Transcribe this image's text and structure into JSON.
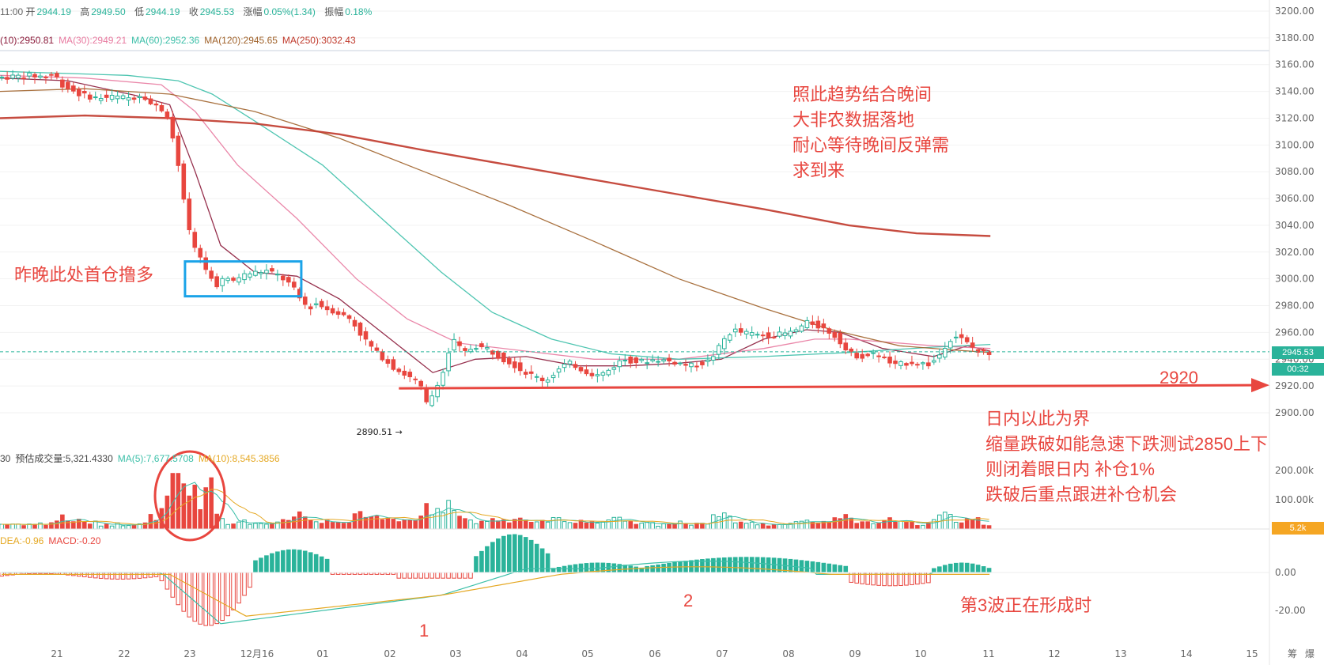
{
  "ohlc": {
    "time": "11:00",
    "open_label": "开",
    "open": "2944.19",
    "high_label": "高",
    "high": "2949.50",
    "low_label": "低",
    "low": "2944.19",
    "close_label": "收",
    "close": "2945.53",
    "change_label": "涨幅",
    "change": "0.05%(1.34)",
    "amp_label": "振幅",
    "amp": "0.18%"
  },
  "ma_legend": [
    {
      "text": "(10):2950.81",
      "color": "#8b1a3a"
    },
    {
      "text": "MA(30):2949.21",
      "color": "#e87aa0"
    },
    {
      "text": "MA(60):2952.36",
      "color": "#3bbfa8"
    },
    {
      "text": "MA(120):2945.65",
      "color": "#a0622a"
    },
    {
      "text": "MA(250):3032.43",
      "color": "#c0392b"
    }
  ],
  "volume_legend": [
    {
      "text": "30",
      "color": "#444"
    },
    {
      "text": "预估成交量:5,321.4330",
      "color": "#444"
    },
    {
      "text": "MA(5):7,677.5708",
      "color": "#3bbfa8"
    },
    {
      "text": "MA(10):8,545.3856",
      "color": "#e5a823"
    }
  ],
  "macd_legend": [
    {
      "text": "DEA:-0.96",
      "color": "#e5a823"
    },
    {
      "text": "MACD:-0.20",
      "color": "#e8463f"
    }
  ],
  "colors": {
    "up": "#2ab39a",
    "down": "#e8463f",
    "grid": "#f2f2f2",
    "axis_text": "#666",
    "annotation": "#e8463f",
    "box": "#1aa3e8",
    "current": "#2ab39a",
    "volume_badge": "#f5a623"
  },
  "annotations": {
    "box_label": "昨晚此处首仓撸多",
    "top_right": [
      "照此趋势结合晚间",
      "大非农数据落地",
      "耐心等待晚间反弹需",
      "求到来"
    ],
    "level": "2920",
    "bottom_right": [
      "日内以此为界",
      "缩量跌破如能急速下跌测试2850上下",
      "则闭着眼日内 补仓1%",
      "跌破后重点跟进补仓机会"
    ],
    "wave1": "1",
    "wave2": "2",
    "wave3": "第3波正在形成时",
    "low_marker": "2890.51"
  },
  "price_badge": "2945.53",
  "time_badge": "00:32",
  "volume_badge": "5.2k",
  "chart_data": {
    "type": "candlestick",
    "price_axis": {
      "ylim": [
        2890,
        3200
      ],
      "ticks": [
        3200,
        3180,
        3160,
        3140,
        3120,
        3100,
        3080,
        3060,
        3040,
        3020,
        3000,
        2980,
        2960,
        2940,
        2920,
        2900
      ],
      "tick_labels": [
        "3200.00",
        "3180.00",
        "3160.00",
        "3140.00",
        "3120.00",
        "3100.00",
        "3080.00",
        "3060.00",
        "3040.00",
        "3020.00",
        "3000.00",
        "2980.00",
        "2960.00",
        "2940.00",
        "2920.00",
        "2900.00"
      ]
    },
    "volume_axis": {
      "tick_labels": [
        "200.00k",
        "100.00k"
      ],
      "ticks": [
        200,
        100
      ]
    },
    "macd_axis": {
      "tick_labels": [
        "0.00",
        "-20.00"
      ],
      "ticks": [
        0,
        -20
      ]
    },
    "x_tick_labels": [
      "21",
      "22",
      "23",
      "12月16",
      "01",
      "02",
      "03",
      "04",
      "05",
      "06",
      "07",
      "08",
      "09",
      "10",
      "11",
      "12",
      "13",
      "14",
      "15"
    ],
    "x_right_labels": [
      "筹",
      "爆"
    ],
    "current_price": 2945.53,
    "low_price": 2890.51,
    "level_line": 2920,
    "box": {
      "price_high": 3013,
      "price_low": 2987
    },
    "price_path": [
      [
        0,
        3150
      ],
      [
        20,
        3151
      ],
      [
        40,
        3152
      ],
      [
        60,
        3151
      ],
      [
        70,
        3153
      ],
      [
        80,
        3145
      ],
      [
        100,
        3138
      ],
      [
        120,
        3135
      ],
      [
        140,
        3136
      ],
      [
        160,
        3135
      ],
      [
        175,
        3138
      ],
      [
        185,
        3130
      ],
      [
        195,
        3128
      ],
      [
        205,
        3120
      ],
      [
        210,
        3105
      ],
      [
        215,
        3090
      ],
      [
        220,
        3070
      ],
      [
        225,
        3050
      ],
      [
        230,
        3035
      ],
      [
        235,
        3022
      ],
      [
        240,
        3020
      ],
      [
        248,
        3008
      ],
      [
        255,
        3002
      ],
      [
        262,
        2996
      ],
      [
        270,
        3000
      ],
      [
        280,
        2998
      ],
      [
        290,
        3002
      ],
      [
        300,
        3004
      ],
      [
        310,
        3005
      ],
      [
        320,
        3006
      ],
      [
        330,
        3004
      ],
      [
        340,
        3000
      ],
      [
        350,
        2995
      ],
      [
        360,
        2985
      ],
      [
        370,
        2978
      ],
      [
        380,
        2982
      ],
      [
        390,
        2978
      ],
      [
        400,
        2976
      ],
      [
        410,
        2973
      ],
      [
        420,
        2970
      ],
      [
        430,
        2960
      ],
      [
        440,
        2952
      ],
      [
        450,
        2945
      ],
      [
        460,
        2940
      ],
      [
        470,
        2934
      ],
      [
        480,
        2930
      ],
      [
        490,
        2926
      ],
      [
        500,
        2922
      ],
      [
        505,
        2915
      ],
      [
        510,
        2905
      ],
      [
        515,
        2912
      ],
      [
        520,
        2920
      ],
      [
        530,
        2932
      ],
      [
        535,
        2945
      ],
      [
        540,
        2955
      ],
      [
        545,
        2950
      ],
      [
        555,
        2945
      ],
      [
        565,
        2950
      ],
      [
        580,
        2948
      ],
      [
        590,
        2944
      ],
      [
        600,
        2940
      ],
      [
        610,
        2937
      ],
      [
        620,
        2932
      ],
      [
        630,
        2929
      ],
      [
        640,
        2926
      ],
      [
        650,
        2924
      ],
      [
        660,
        2930
      ],
      [
        670,
        2935
      ],
      [
        680,
        2937
      ],
      [
        690,
        2933
      ],
      [
        700,
        2930
      ],
      [
        710,
        2928
      ],
      [
        720,
        2930
      ],
      [
        730,
        2935
      ],
      [
        740,
        2940
      ],
      [
        760,
        2938
      ],
      [
        780,
        2940
      ],
      [
        800,
        2938
      ],
      [
        820,
        2935
      ],
      [
        840,
        2938
      ],
      [
        850,
        2945
      ],
      [
        860,
        2955
      ],
      [
        870,
        2962
      ],
      [
        880,
        2960
      ],
      [
        900,
        2958
      ],
      [
        920,
        2958
      ],
      [
        940,
        2960
      ],
      [
        960,
        2968
      ],
      [
        970,
        2965
      ],
      [
        985,
        2960
      ],
      [
        995,
        2955
      ],
      [
        1005,
        2945
      ],
      [
        1020,
        2942
      ],
      [
        1040,
        2944
      ],
      [
        1060,
        2935
      ],
      [
        1080,
        2938
      ],
      [
        1100,
        2936
      ],
      [
        1110,
        2940
      ],
      [
        1120,
        2950
      ],
      [
        1130,
        2958
      ],
      [
        1140,
        2955
      ],
      [
        1150,
        2950
      ],
      [
        1160,
        2945
      ],
      [
        1167,
        2945
      ]
    ],
    "ma_lines": [
      {
        "name": "MA(10)",
        "color": "#8b1a3a",
        "points": [
          [
            0,
            3150
          ],
          [
            80,
            3148
          ],
          [
            160,
            3137
          ],
          [
            200,
            3130
          ],
          [
            230,
            3080
          ],
          [
            260,
            3025
          ],
          [
            300,
            3005
          ],
          [
            350,
            3002
          ],
          [
            400,
            2985
          ],
          [
            460,
            2955
          ],
          [
            510,
            2930
          ],
          [
            560,
            2940
          ],
          [
            620,
            2942
          ],
          [
            680,
            2935
          ],
          [
            740,
            2935
          ],
          [
            800,
            2937
          ],
          [
            850,
            2940
          ],
          [
            900,
            2955
          ],
          [
            950,
            2962
          ],
          [
            990,
            2960
          ],
          [
            1040,
            2948
          ],
          [
            1100,
            2942
          ],
          [
            1140,
            2950
          ],
          [
            1167,
            2946
          ]
        ]
      },
      {
        "name": "MA(30)",
        "color": "#e87aa0",
        "points": [
          [
            0,
            3152
          ],
          [
            100,
            3150
          ],
          [
            190,
            3145
          ],
          [
            230,
            3125
          ],
          [
            280,
            3085
          ],
          [
            350,
            3045
          ],
          [
            420,
            3000
          ],
          [
            480,
            2970
          ],
          [
            540,
            2952
          ],
          [
            620,
            2946
          ],
          [
            700,
            2940
          ],
          [
            800,
            2940
          ],
          [
            900,
            2948
          ],
          [
            960,
            2955
          ],
          [
            1000,
            2955
          ],
          [
            1100,
            2950
          ],
          [
            1167,
            2948
          ]
        ]
      },
      {
        "name": "MA(60)",
        "color": "#3bbfa8",
        "points": [
          [
            0,
            3155
          ],
          [
            150,
            3152
          ],
          [
            210,
            3148
          ],
          [
            250,
            3138
          ],
          [
            300,
            3118
          ],
          [
            380,
            3085
          ],
          [
            450,
            3045
          ],
          [
            520,
            3005
          ],
          [
            580,
            2975
          ],
          [
            650,
            2955
          ],
          [
            720,
            2944
          ],
          [
            800,
            2940
          ],
          [
            900,
            2942
          ],
          [
            1000,
            2945
          ],
          [
            1100,
            2949
          ],
          [
            1167,
            2951
          ]
        ]
      },
      {
        "name": "MA(120)",
        "color": "#a0622a",
        "points": [
          [
            0,
            3140
          ],
          [
            100,
            3142
          ],
          [
            200,
            3138
          ],
          [
            300,
            3125
          ],
          [
            400,
            3105
          ],
          [
            500,
            3080
          ],
          [
            600,
            3055
          ],
          [
            700,
            3028
          ],
          [
            800,
            3000
          ],
          [
            900,
            2978
          ],
          [
            980,
            2962
          ],
          [
            1060,
            2950
          ],
          [
            1120,
            2947
          ],
          [
            1167,
            2945
          ]
        ]
      },
      {
        "name": "MA(250)",
        "color": "#c0392b",
        "points": [
          [
            0,
            3120
          ],
          [
            100,
            3122
          ],
          [
            200,
            3120
          ],
          [
            300,
            3116
          ],
          [
            400,
            3108
          ],
          [
            500,
            3096
          ],
          [
            600,
            3085
          ],
          [
            700,
            3074
          ],
          [
            800,
            3063
          ],
          [
            900,
            3052
          ],
          [
            1000,
            3040
          ],
          [
            1080,
            3034
          ],
          [
            1167,
            3032
          ]
        ]
      }
    ]
  }
}
